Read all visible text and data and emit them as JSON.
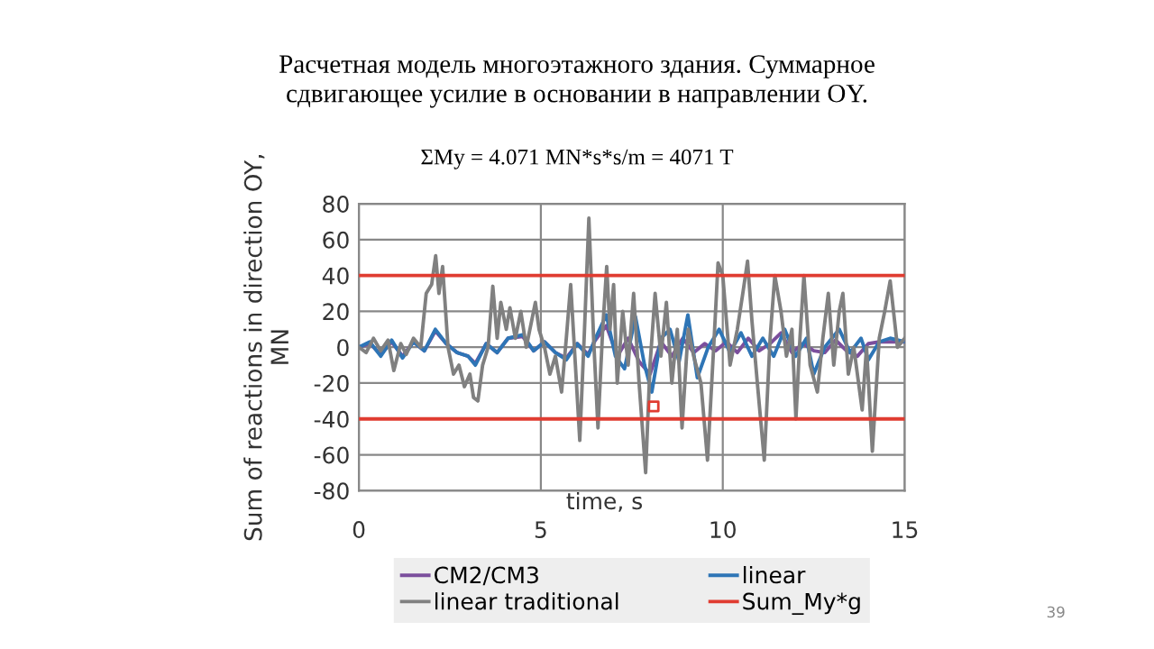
{
  "chart_data": {
    "type": "line",
    "title": "Расчетная модель многоэтажного здания. Суммарное сдвигающее усилие в основании в направлении OY.",
    "subtitle": "ΣMy = 4.071 MN*s*s/m = 4071 T",
    "xlabel": "time, s",
    "ylabel": "Sum of reactions in direction OY, MN",
    "xlim": [
      0,
      15
    ],
    "xticks": [
      0,
      5,
      10,
      15
    ],
    "ylim": [
      -80,
      80
    ],
    "yticks": [
      -80,
      -60,
      -40,
      -20,
      0,
      20,
      40,
      60,
      80
    ],
    "grid": true,
    "legend": "bottom",
    "marker": "none",
    "line_style": "solid",
    "annotations": [
      "39"
    ],
    "series": [
      {
        "name": "CM2/CM3",
        "color": "#7b4f9d",
        "x": [
          0,
          0.3,
          0.6,
          0.9,
          1.2,
          1.5,
          1.8,
          2.1,
          2.4,
          2.7,
          3.0,
          3.2,
          3.5,
          3.8,
          4.1,
          4.5,
          4.8,
          5.1,
          5.4,
          5.7,
          6.0,
          6.3,
          6.5,
          6.8,
          7.1,
          7.4,
          7.7,
          8.0,
          8.3,
          8.6,
          8.9,
          9.2,
          9.5,
          9.8,
          10.1,
          10.4,
          10.7,
          11.0,
          11.3,
          11.6,
          11.9,
          12.2,
          12.5,
          12.8,
          13.1,
          13.4,
          13.7,
          14.0,
          14.3,
          14.6,
          15
        ],
        "values": [
          0,
          2,
          -4,
          3,
          -5,
          3,
          -2,
          9,
          2,
          -3,
          -5,
          -9,
          2,
          -3,
          5,
          6,
          -2,
          3,
          -3,
          -6,
          2,
          -4,
          4,
          12,
          -5,
          5,
          -8,
          -15,
          3,
          -5,
          5,
          -3,
          2,
          -2,
          3,
          -3,
          5,
          -2,
          2,
          8,
          -3,
          2,
          -2,
          -3,
          4,
          -2,
          -5,
          2,
          3,
          3,
          3
        ]
      },
      {
        "name": "linear",
        "color": "#2e75b6",
        "x": [
          0,
          0.3,
          0.6,
          0.9,
          1.2,
          1.5,
          1.8,
          2.1,
          2.4,
          2.7,
          3.0,
          3.2,
          3.5,
          3.8,
          4.1,
          4.5,
          4.8,
          5.1,
          5.4,
          5.7,
          6.0,
          6.3,
          6.5,
          6.8,
          7.05,
          7.3,
          7.6,
          7.85,
          8.05,
          8.3,
          8.55,
          8.8,
          9.04,
          9.3,
          9.6,
          9.9,
          10.2,
          10.5,
          10.8,
          11.1,
          11.4,
          11.7,
          12.0,
          12.3,
          12.5,
          12.8,
          13.2,
          13.5,
          13.8,
          14.0,
          14.3,
          14.6,
          15
        ],
        "values": [
          0,
          3,
          -5,
          4,
          -6,
          3,
          -2,
          10,
          2,
          -3,
          -5,
          -10,
          2,
          -3,
          5,
          7,
          -2,
          3,
          -3,
          -7,
          2,
          -5,
          5,
          18,
          -5,
          -12,
          17,
          -10,
          -25,
          5,
          10,
          -8,
          18,
          -17,
          0,
          10,
          -3,
          8,
          -5,
          5,
          -5,
          10,
          -5,
          5,
          -15,
          0,
          10,
          -3,
          5,
          -7,
          3,
          5,
          3
        ]
      },
      {
        "name": "linear traditional",
        "color": "#808080",
        "x": [
          0,
          0.2,
          0.4,
          0.6,
          0.8,
          0.96,
          1.15,
          1.3,
          1.5,
          1.7,
          1.85,
          2.0,
          2.11,
          2.2,
          2.3,
          2.45,
          2.6,
          2.75,
          2.9,
          3.05,
          3.15,
          3.27,
          3.4,
          3.55,
          3.68,
          3.8,
          3.9,
          4.05,
          4.15,
          4.3,
          4.45,
          4.6,
          4.75,
          4.85,
          4.95,
          5.1,
          5.25,
          5.4,
          5.57,
          5.7,
          5.82,
          5.95,
          6.07,
          6.2,
          6.32,
          6.45,
          6.57,
          6.7,
          6.81,
          6.9,
          7.0,
          7.1,
          7.25,
          7.4,
          7.55,
          7.7,
          7.88,
          8.0,
          8.14,
          8.3,
          8.45,
          8.6,
          8.75,
          8.88,
          9.05,
          9.2,
          9.4,
          9.58,
          9.75,
          9.87,
          10.0,
          10.2,
          10.4,
          10.55,
          10.68,
          10.8,
          10.95,
          11.14,
          11.3,
          11.43,
          11.6,
          11.75,
          11.9,
          12.01,
          12.12,
          12.23,
          12.4,
          12.6,
          12.75,
          12.9,
          13.05,
          13.2,
          13.3,
          13.45,
          13.6,
          13.83,
          13.95,
          14.11,
          14.3,
          14.45,
          14.6,
          14.8,
          15
        ],
        "values": [
          0,
          -3,
          5,
          -2,
          4,
          -13,
          2,
          -4,
          5,
          0,
          30,
          35,
          51,
          30,
          45,
          0,
          -15,
          -10,
          -22,
          -15,
          -28,
          -30,
          -10,
          0,
          34,
          5,
          25,
          10,
          22,
          5,
          20,
          0,
          15,
          25,
          10,
          0,
          -15,
          -5,
          -25,
          5,
          35,
          -10,
          -52,
          10,
          72,
          5,
          -45,
          10,
          45,
          10,
          35,
          -20,
          20,
          -10,
          30,
          -20,
          -70,
          -10,
          30,
          -5,
          25,
          -20,
          10,
          -45,
          10,
          -5,
          -20,
          -63,
          0,
          47,
          40,
          -10,
          10,
          30,
          48,
          15,
          -20,
          -63,
          5,
          40,
          20,
          -5,
          10,
          -40,
          5,
          40,
          -10,
          -25,
          5,
          30,
          -10,
          20,
          30,
          -15,
          0,
          -35,
          0,
          -58,
          5,
          20,
          37,
          0,
          5
        ]
      },
      {
        "name": "Sum_My*g",
        "color": "#e03c31",
        "x": [
          0,
          15
        ],
        "values": [
          40,
          40
        ]
      },
      {
        "color": "#e03c31",
        "x": [
          0,
          15
        ],
        "values": [
          -40,
          -40
        ]
      },
      {
        "type": "scatter",
        "color": "#e03c31",
        "marker": "square",
        "x": [
          8.1
        ],
        "values": [
          -33
        ]
      }
    ]
  }
}
